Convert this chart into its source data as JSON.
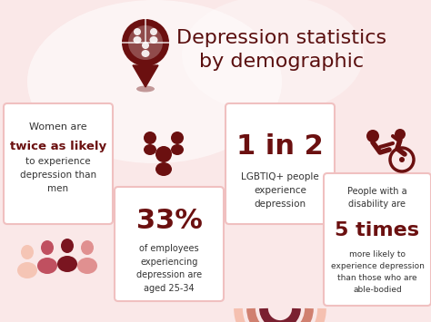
{
  "bg_color": "#fae8e8",
  "title_line1": "Depression statistics",
  "title_line2": "by demographic",
  "title_color": "#5a0f0f",
  "title_fontsize": 16,
  "card_bg": "#ffffff",
  "card_border": "#f0c0c0",
  "dark_red": "#6b1010",
  "pink_light": "#f5c0b0",
  "pink_medium": "#d07060",
  "pink_dark": "#a04040",
  "very_dark_red": "#5a0f0f",
  "stat1_bold": "twice as likely",
  "stat1_text_pre": "Women are",
  "stat1_text_post": "to experience\ndepression than\nmen",
  "stat2_bold": "33%",
  "stat2_text": "of employees\nexperiencing\ndepression are\naged 25-34",
  "stat3_bold": "1 in 2",
  "stat3_text": "LGBTIQ+ people\nexperience\ndepression",
  "stat4_text_pre": "People with a\ndisability are",
  "stat4_bold": "5 times",
  "stat4_text_post": "more likely to\nexperience depression\nthan those who are\nable-bodied"
}
